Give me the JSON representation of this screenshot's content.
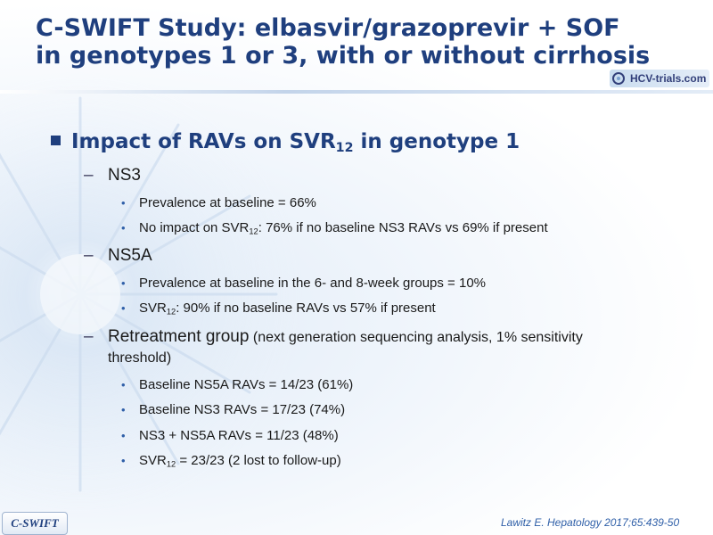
{
  "title": {
    "line1": "C-SWIFT Study: elbasvir/grazoprevir + SOF",
    "line2": "in genotypes 1 or 3, with or without cirrhosis"
  },
  "logo": {
    "text": "HCV-trials.com"
  },
  "heading": {
    "text": "Impact of RAVs on SVR",
    "sub": "12",
    "after": " in genotype 1"
  },
  "sections": {
    "ns3": {
      "label": "NS3",
      "b1": "Prevalence at baseline = 66%",
      "b2_pre": "No impact on SVR",
      "b2_sub": "12",
      "b2_post": ": 76% if no baseline NS3 RAVs vs 69% if present"
    },
    "ns5a": {
      "label": "NS5A",
      "b1": "Prevalence at baseline in the 6- and 8-week groups = 10%",
      "b2_pre": "SVR",
      "b2_sub": "12",
      "b2_post": ": 90% if no baseline RAVs vs 57% if present"
    },
    "retreat": {
      "label": "Retreatment group",
      "note": " (next generation sequencing analysis, 1% sensitivity",
      "note2": "threshold)",
      "b1": "Baseline NS5A RAVs = 14/23 (61%)",
      "b2": "Baseline NS3 RAVs = 17/23 (74%)",
      "b3": "NS3 + NS5A RAVs = 11/23 (48%)",
      "b4_pre": "SVR",
      "b4_sub": "12",
      "b4_post": " = 23/23 (2 lost to follow-up)"
    }
  },
  "footer": {
    "badge": "C-SWIFT",
    "reference": "Lawitz  E. Hepatology 2017;65:439-50"
  },
  "colors": {
    "title": "#1f3f7e",
    "bullet": "#2f5fa8",
    "reference": "#2f5fa8"
  },
  "icons": {
    "bullet_l1": "square-bullet",
    "bullet_l2": "dash",
    "bullet_l3": "dot"
  }
}
